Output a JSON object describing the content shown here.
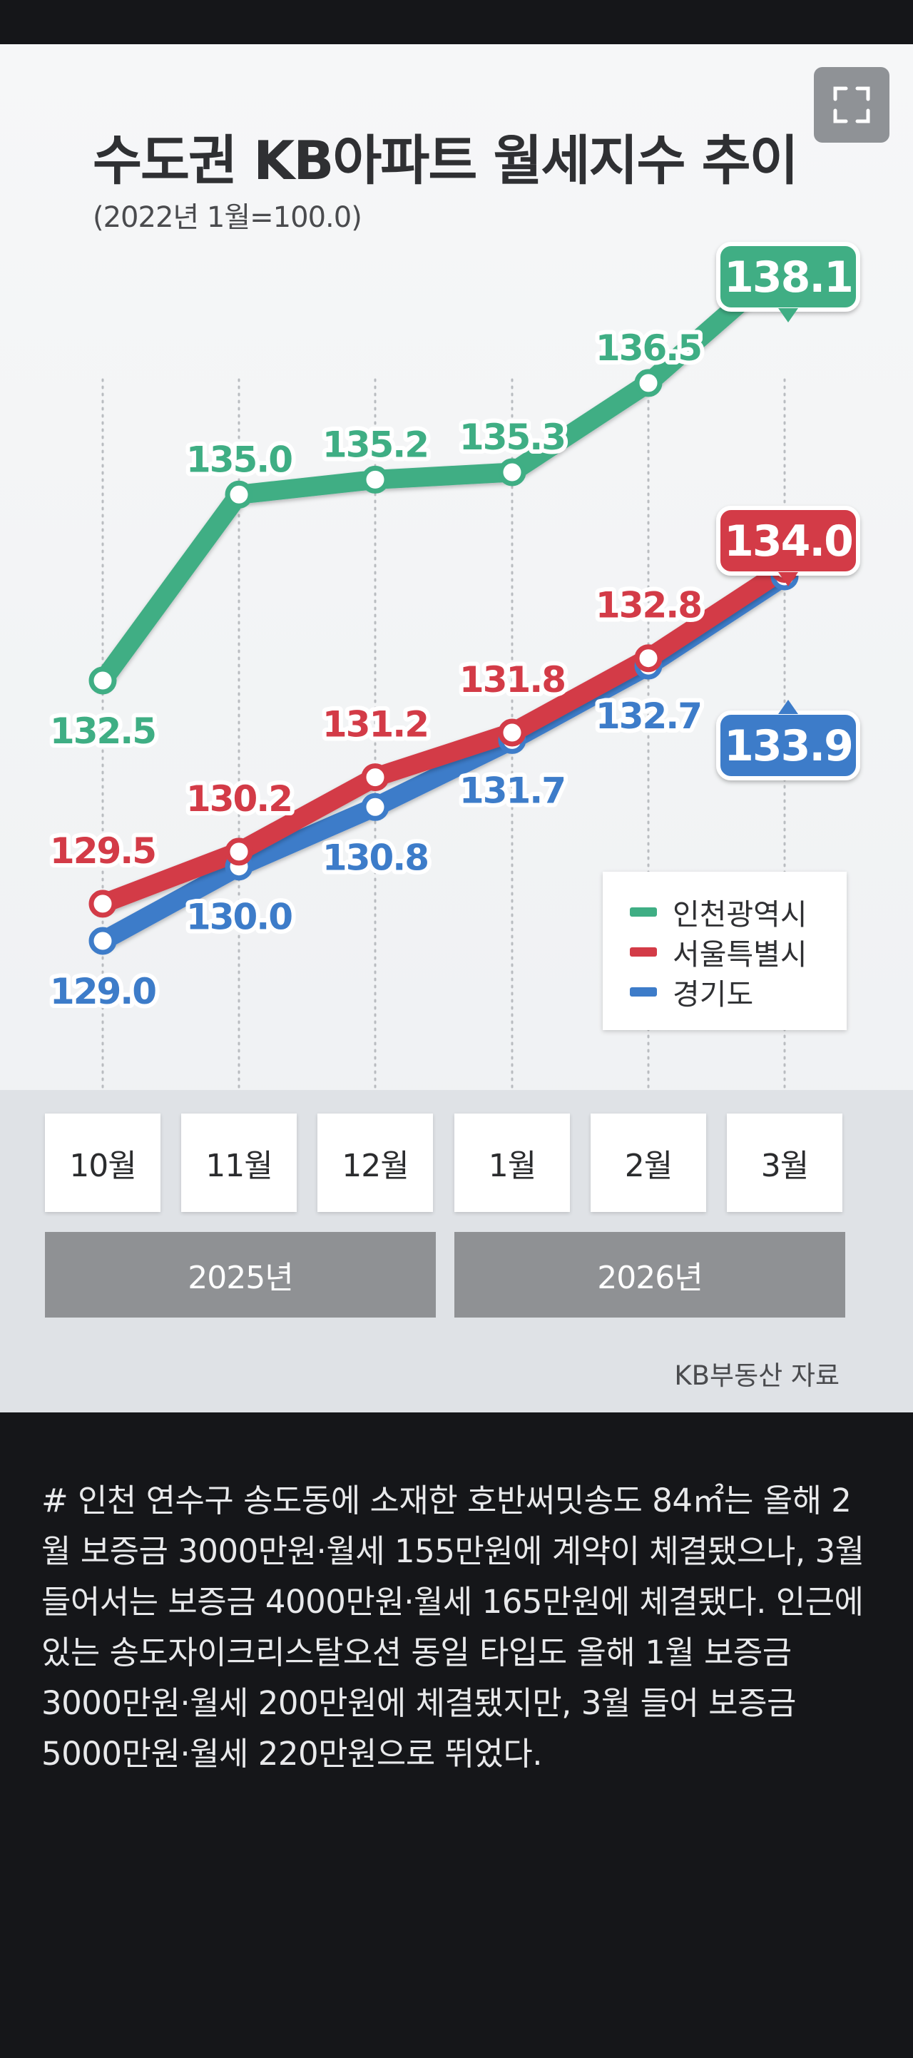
{
  "chart_data": {
    "type": "line",
    "title": "수도권 KB아파트 월세지수 추이",
    "subtitle": "(2022년 1월=100.0)",
    "categories": [
      "10월",
      "11월",
      "12월",
      "1월",
      "2월",
      "3월"
    ],
    "year_groups": [
      {
        "label": "2025년",
        "months": [
          "10월",
          "11월",
          "12월"
        ]
      },
      {
        "label": "2026년",
        "months": [
          "1월",
          "2월",
          "3월"
        ]
      }
    ],
    "series": [
      {
        "name": "인천광역시",
        "color": "#3fae84",
        "values": [
          132.5,
          135.0,
          135.2,
          135.3,
          136.5,
          138.1
        ],
        "labels": [
          "132.5",
          "135.0",
          "135.2",
          "135.3",
          "136.5",
          "138.1"
        ]
      },
      {
        "name": "서울특별시",
        "color": "#d33b47",
        "values": [
          129.5,
          130.2,
          131.2,
          131.8,
          132.8,
          134.0
        ],
        "labels": [
          "129.5",
          "130.2",
          "131.2",
          "131.8",
          "132.8",
          "134.0"
        ]
      },
      {
        "name": "경기도",
        "color": "#3d7cc9",
        "values": [
          129.0,
          130.0,
          130.8,
          131.7,
          132.7,
          133.9
        ],
        "labels": [
          "129.0",
          "130.0",
          "130.8",
          "131.7",
          "132.7",
          "133.9"
        ]
      }
    ],
    "ylim": [
      128.3,
      138.8
    ],
    "grid": "vertical dotted",
    "legend_position": "bottom-right",
    "source": "KB부동산 자료"
  },
  "ui": {
    "expand_icon": "expand-icon"
  },
  "article": {
    "text": "# 인천 연수구 송도동에 소재한 호반써밋송도 84㎡는 올해 2월 보증금 3000만원·월세 155만원에 계약이 체결됐으나, 3월 들어서는 보증금 4000만원·월세 165만원에 체결됐다. 인근에 있는 송도자이크리스탈오션 동일 타입도 올해 1월 보증금 3000만원·월세 200만원에 체결됐지만, 3월 들어 보증금 5000만원·월세 220만원으로 뛰었다."
  }
}
